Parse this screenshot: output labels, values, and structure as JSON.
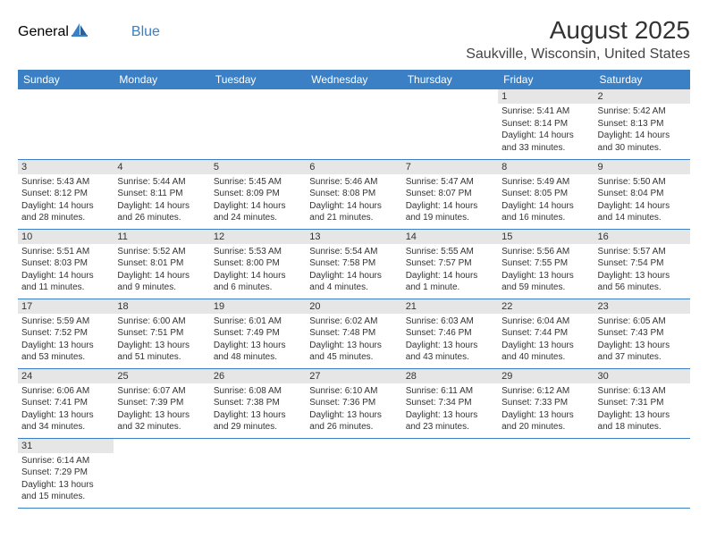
{
  "logo": {
    "textA": "General",
    "textB": "Blue"
  },
  "title": "August 2025",
  "location": "Saukville, Wisconsin, United States",
  "colors": {
    "header_bg": "#3b7fc4",
    "header_text": "#ffffff",
    "daynum_bg": "#e6e6e6",
    "row_border": "#3b7fc4",
    "text": "#333333"
  },
  "dayHeaders": [
    "Sunday",
    "Monday",
    "Tuesday",
    "Wednesday",
    "Thursday",
    "Friday",
    "Saturday"
  ],
  "firstWeekday": 5,
  "daysInMonth": 31,
  "days": {
    "1": {
      "sunrise": "5:41 AM",
      "sunset": "8:14 PM",
      "daylight": "14 hours and 33 minutes."
    },
    "2": {
      "sunrise": "5:42 AM",
      "sunset": "8:13 PM",
      "daylight": "14 hours and 30 minutes."
    },
    "3": {
      "sunrise": "5:43 AM",
      "sunset": "8:12 PM",
      "daylight": "14 hours and 28 minutes."
    },
    "4": {
      "sunrise": "5:44 AM",
      "sunset": "8:11 PM",
      "daylight": "14 hours and 26 minutes."
    },
    "5": {
      "sunrise": "5:45 AM",
      "sunset": "8:09 PM",
      "daylight": "14 hours and 24 minutes."
    },
    "6": {
      "sunrise": "5:46 AM",
      "sunset": "8:08 PM",
      "daylight": "14 hours and 21 minutes."
    },
    "7": {
      "sunrise": "5:47 AM",
      "sunset": "8:07 PM",
      "daylight": "14 hours and 19 minutes."
    },
    "8": {
      "sunrise": "5:49 AM",
      "sunset": "8:05 PM",
      "daylight": "14 hours and 16 minutes."
    },
    "9": {
      "sunrise": "5:50 AM",
      "sunset": "8:04 PM",
      "daylight": "14 hours and 14 minutes."
    },
    "10": {
      "sunrise": "5:51 AM",
      "sunset": "8:03 PM",
      "daylight": "14 hours and 11 minutes."
    },
    "11": {
      "sunrise": "5:52 AM",
      "sunset": "8:01 PM",
      "daylight": "14 hours and 9 minutes."
    },
    "12": {
      "sunrise": "5:53 AM",
      "sunset": "8:00 PM",
      "daylight": "14 hours and 6 minutes."
    },
    "13": {
      "sunrise": "5:54 AM",
      "sunset": "7:58 PM",
      "daylight": "14 hours and 4 minutes."
    },
    "14": {
      "sunrise": "5:55 AM",
      "sunset": "7:57 PM",
      "daylight": "14 hours and 1 minute."
    },
    "15": {
      "sunrise": "5:56 AM",
      "sunset": "7:55 PM",
      "daylight": "13 hours and 59 minutes."
    },
    "16": {
      "sunrise": "5:57 AM",
      "sunset": "7:54 PM",
      "daylight": "13 hours and 56 minutes."
    },
    "17": {
      "sunrise": "5:59 AM",
      "sunset": "7:52 PM",
      "daylight": "13 hours and 53 minutes."
    },
    "18": {
      "sunrise": "6:00 AM",
      "sunset": "7:51 PM",
      "daylight": "13 hours and 51 minutes."
    },
    "19": {
      "sunrise": "6:01 AM",
      "sunset": "7:49 PM",
      "daylight": "13 hours and 48 minutes."
    },
    "20": {
      "sunrise": "6:02 AM",
      "sunset": "7:48 PM",
      "daylight": "13 hours and 45 minutes."
    },
    "21": {
      "sunrise": "6:03 AM",
      "sunset": "7:46 PM",
      "daylight": "13 hours and 43 minutes."
    },
    "22": {
      "sunrise": "6:04 AM",
      "sunset": "7:44 PM",
      "daylight": "13 hours and 40 minutes."
    },
    "23": {
      "sunrise": "6:05 AM",
      "sunset": "7:43 PM",
      "daylight": "13 hours and 37 minutes."
    },
    "24": {
      "sunrise": "6:06 AM",
      "sunset": "7:41 PM",
      "daylight": "13 hours and 34 minutes."
    },
    "25": {
      "sunrise": "6:07 AM",
      "sunset": "7:39 PM",
      "daylight": "13 hours and 32 minutes."
    },
    "26": {
      "sunrise": "6:08 AM",
      "sunset": "7:38 PM",
      "daylight": "13 hours and 29 minutes."
    },
    "27": {
      "sunrise": "6:10 AM",
      "sunset": "7:36 PM",
      "daylight": "13 hours and 26 minutes."
    },
    "28": {
      "sunrise": "6:11 AM",
      "sunset": "7:34 PM",
      "daylight": "13 hours and 23 minutes."
    },
    "29": {
      "sunrise": "6:12 AM",
      "sunset": "7:33 PM",
      "daylight": "13 hours and 20 minutes."
    },
    "30": {
      "sunrise": "6:13 AM",
      "sunset": "7:31 PM",
      "daylight": "13 hours and 18 minutes."
    },
    "31": {
      "sunrise": "6:14 AM",
      "sunset": "7:29 PM",
      "daylight": "13 hours and 15 minutes."
    }
  },
  "labels": {
    "sunrise": "Sunrise: ",
    "sunset": "Sunset: ",
    "daylight": "Daylight: "
  }
}
